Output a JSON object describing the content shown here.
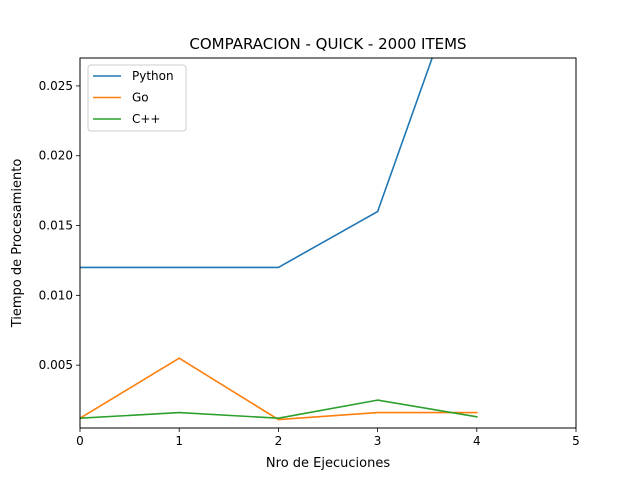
{
  "chart_data": {
    "type": "line",
    "title": "COMPARACION - QUICK - 2000 ITEMS",
    "xlabel": "Nro de Ejecuciones",
    "ylabel": "Tiempo de Procesamiento",
    "xlim": [
      0,
      5
    ],
    "ylim": [
      0.0005,
      0.027
    ],
    "xticks": [
      0,
      1,
      2,
      3,
      4,
      5
    ],
    "xtick_labels": [
      "0",
      "1",
      "2",
      "3",
      "4",
      "5"
    ],
    "yticks": [
      0.005,
      0.01,
      0.015,
      0.02,
      0.025
    ],
    "ytick_labels": [
      "0.005",
      "0.010",
      "0.015",
      "0.020",
      "0.025"
    ],
    "grid": false,
    "legend_position": "top-left",
    "x": [
      0,
      1,
      2,
      3,
      4
    ],
    "series": [
      {
        "name": "Python",
        "color": "#1f77b4",
        "values": [
          0.012,
          0.012,
          0.012,
          0.016,
          0.036
        ]
      },
      {
        "name": "Go",
        "color": "#ff7f0e",
        "values": [
          0.0012,
          0.0055,
          0.0011,
          0.0016,
          0.0016
        ]
      },
      {
        "name": "C++",
        "color": "#2ca02c",
        "values": [
          0.0012,
          0.0016,
          0.0012,
          0.0025,
          0.0013
        ]
      }
    ]
  }
}
